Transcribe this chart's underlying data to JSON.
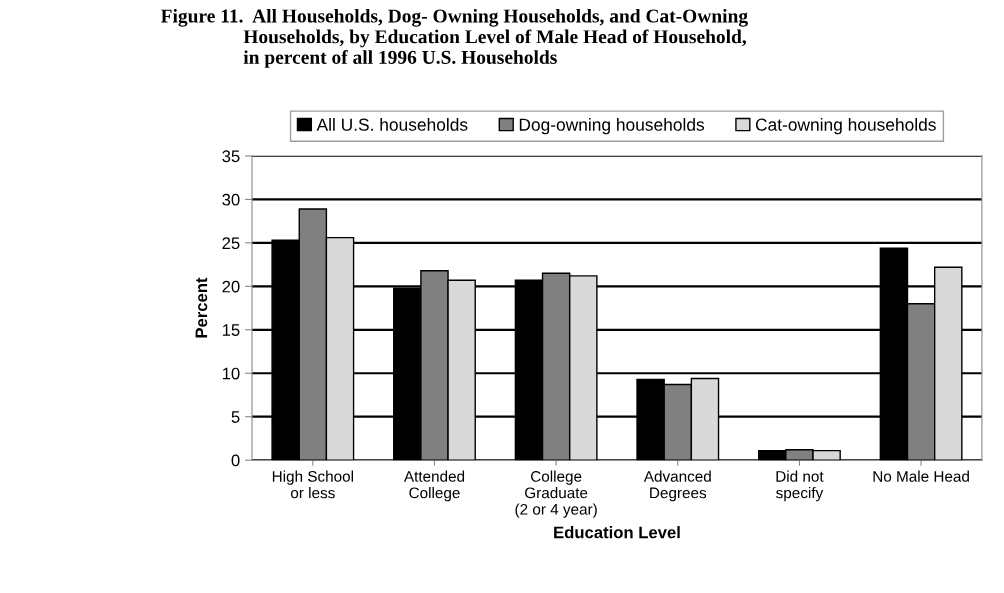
{
  "chart_data": {
    "type": "bar",
    "title": "Figure 11.  All Households, Dog- Owning Households, and Cat-Owning\n                 Households, by Education Level of Male Head of Household,\n                 in percent of all 1996 U.S. Households",
    "xlabel": "Education Level",
    "ylabel": "Percent",
    "categories": [
      "High School\nor less",
      "Attended\nCollege",
      "College\nGraduate\n(2 or 4 year)",
      "Advanced\nDegrees",
      "Did not\nspecify",
      "No Male Head"
    ],
    "series": [
      {
        "name": "All U.S. households",
        "color": "#000000",
        "values": [
          25.3,
          19.8,
          20.7,
          9.3,
          1.1,
          24.4
        ]
      },
      {
        "name": "Dog-owning households",
        "color": "#808080",
        "values": [
          28.9,
          21.8,
          21.5,
          8.7,
          1.2,
          18.0
        ]
      },
      {
        "name": "Cat-owning households",
        "color": "#d9d9d9",
        "values": [
          25.6,
          20.7,
          21.2,
          9.4,
          1.1,
          22.2
        ]
      }
    ],
    "ylim": [
      0,
      35
    ],
    "yticks": [
      0,
      5,
      10,
      15,
      20,
      25,
      30,
      35
    ],
    "grid": "y",
    "legend": "top"
  }
}
